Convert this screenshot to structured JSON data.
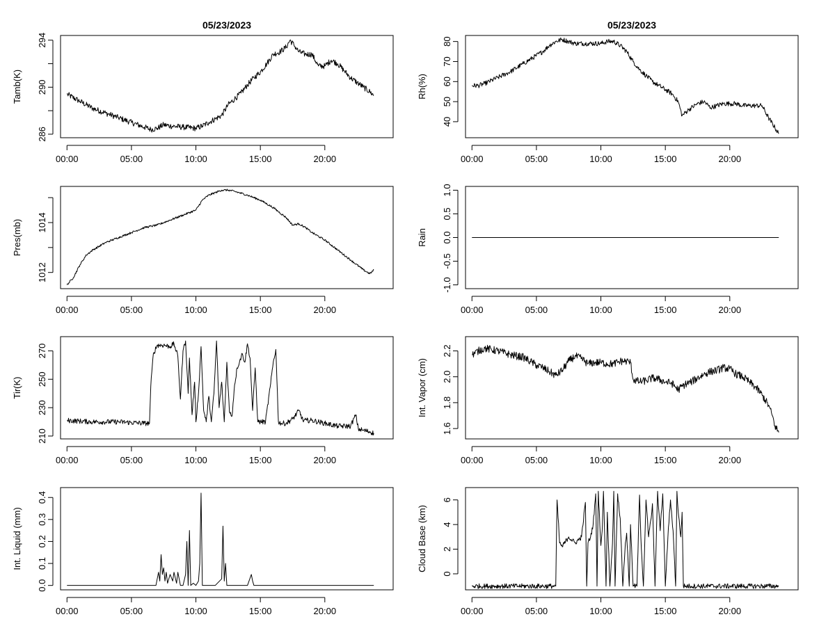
{
  "chart_data": [
    {
      "type": "line",
      "title": "05/23/2023",
      "ylabel": "Tamb(K)",
      "xlabel": "",
      "xlim": [
        -0.5,
        25.3
      ],
      "ylim": [
        285.7,
        294.4
      ],
      "xticks": [
        "00:00",
        "05:00",
        "10:00",
        "15:00",
        "20:00"
      ],
      "xtick_values": [
        0,
        5,
        10,
        15,
        20
      ],
      "yticks": [
        "286",
        "290",
        "294"
      ],
      "ytick_values": [
        286,
        290,
        294
      ],
      "ytick_minor": [
        288,
        292
      ],
      "x": [
        0,
        1,
        2,
        3,
        4,
        5,
        6,
        6.5,
        7,
        7.5,
        8,
        9,
        10,
        10.5,
        11,
        11.5,
        12,
        12.5,
        13,
        13.5,
        14,
        14.5,
        15,
        15.5,
        16,
        16.5,
        17,
        17.3,
        17.6,
        18,
        18.5,
        19,
        19.5,
        20,
        20.5,
        21,
        21.5,
        22,
        22.5,
        23,
        23.5,
        23.8
      ],
      "values": [
        289.4,
        288.8,
        288.2,
        287.8,
        287.4,
        287.0,
        286.6,
        286.4,
        286.5,
        286.8,
        286.7,
        286.6,
        286.5,
        286.7,
        287.0,
        287.3,
        287.6,
        288.5,
        289.0,
        289.5,
        290.2,
        290.8,
        291.3,
        292.0,
        292.8,
        293.0,
        293.4,
        294.0,
        293.6,
        293.0,
        292.8,
        292.8,
        291.8,
        291.8,
        292.3,
        292.0,
        291.4,
        290.8,
        290.4,
        290.0,
        289.6,
        289.3
      ],
      "noise": 0.25
    },
    {
      "type": "line",
      "title": "05/23/2023",
      "ylabel": "Rh(%)",
      "xlabel": "",
      "xlim": [
        -0.5,
        25.3
      ],
      "ylim": [
        32,
        83
      ],
      "xticks": [
        "00:00",
        "05:00",
        "10:00",
        "15:00",
        "20:00"
      ],
      "xtick_values": [
        0,
        5,
        10,
        15,
        20
      ],
      "yticks": [
        "40",
        "50",
        "60",
        "70",
        "80"
      ],
      "ytick_values": [
        40,
        50,
        60,
        70,
        80
      ],
      "ytick_minor": [],
      "x": [
        0,
        0.5,
        1,
        2,
        3,
        4,
        5,
        5.5,
        6,
        6.5,
        7,
        7.5,
        8,
        9,
        10,
        10.5,
        11,
        11.5,
        12,
        12.5,
        13,
        13.5,
        14,
        14.5,
        15,
        15.5,
        16,
        16.3,
        16.8,
        17.5,
        18,
        18.5,
        19,
        19.5,
        20,
        20.5,
        21,
        21.5,
        22,
        22.5,
        23,
        23.5,
        23.8
      ],
      "values": [
        58,
        58,
        59,
        62,
        65,
        69,
        73,
        75,
        78,
        80,
        81,
        80,
        79,
        79,
        79,
        80,
        80,
        78,
        75,
        70,
        66,
        63,
        60,
        58,
        56,
        54,
        50,
        43,
        46,
        49,
        50,
        47,
        48,
        49,
        49,
        49,
        48,
        48,
        48,
        48,
        42,
        37,
        34
      ],
      "noise": 1.2
    },
    {
      "type": "line",
      "title": "",
      "ylabel": "Pres(mb)",
      "xlabel": "",
      "xlim": [
        -0.5,
        25.3
      ],
      "ylim": [
        1011.35,
        1015.45
      ],
      "xticks": [
        "00:00",
        "05:00",
        "10:00",
        "15:00",
        "20:00"
      ],
      "xtick_values": [
        0,
        5,
        10,
        15,
        20
      ],
      "yticks": [
        "1012",
        "1014"
      ],
      "ytick_values": [
        1012,
        1014
      ],
      "ytick_minor": [
        1013,
        1015
      ],
      "x": [
        0,
        0.5,
        1,
        1.5,
        2,
        3,
        4,
        5,
        6,
        7,
        8,
        9,
        10,
        10.5,
        11,
        11.5,
        12,
        12.5,
        13,
        14,
        15,
        16,
        17,
        17.5,
        18,
        18.5,
        19,
        20,
        21,
        22,
        23,
        23.5,
        23.8
      ],
      "values": [
        1011.5,
        1011.8,
        1012.3,
        1012.7,
        1012.9,
        1013.2,
        1013.4,
        1013.6,
        1013.8,
        1013.9,
        1014.1,
        1014.3,
        1014.5,
        1014.9,
        1015.1,
        1015.2,
        1015.3,
        1015.3,
        1015.25,
        1015.1,
        1014.9,
        1014.6,
        1014.2,
        1013.9,
        1013.95,
        1013.8,
        1013.6,
        1013.3,
        1012.9,
        1012.5,
        1012.1,
        1011.95,
        1012.1
      ],
      "noise": 0.04
    },
    {
      "type": "line",
      "title": "",
      "ylabel": "Rain",
      "xlabel": "",
      "xlim": [
        -0.5,
        25.3
      ],
      "ylim": [
        -1.08,
        1.08
      ],
      "xticks": [
        "00:00",
        "05:00",
        "10:00",
        "15:00",
        "20:00"
      ],
      "xtick_values": [
        0,
        5,
        10,
        15,
        20
      ],
      "yticks": [
        "-1.0",
        "-0.5",
        "0.0",
        "0.5",
        "1.0"
      ],
      "ytick_values": [
        -1.0,
        -0.5,
        0.0,
        0.5,
        1.0
      ],
      "ytick_minor": [],
      "x": [
        0,
        23.8
      ],
      "values": [
        0,
        0
      ],
      "noise": 0
    },
    {
      "type": "line",
      "title": "",
      "ylabel": "Tir(K)",
      "xlabel": "",
      "xlim": [
        -0.5,
        25.3
      ],
      "ylim": [
        208,
        280
      ],
      "xticks": [
        "00:00",
        "05:00",
        "10:00",
        "15:00",
        "20:00"
      ],
      "xtick_values": [
        0,
        5,
        10,
        15,
        20
      ],
      "yticks": [
        "210",
        "230",
        "250",
        "270"
      ],
      "ytick_values": [
        210,
        230,
        250,
        270
      ],
      "ytick_minor": [],
      "x": [
        0,
        2,
        4,
        6,
        6.4,
        6.5,
        6.7,
        7,
        7.5,
        8,
        8.3,
        8.6,
        8.8,
        9,
        9.2,
        9.4,
        9.5,
        9.7,
        9.9,
        10,
        10.2,
        10.4,
        10.6,
        10.8,
        11,
        11.2,
        11.4,
        11.6,
        11.8,
        12,
        12.2,
        12.4,
        12.6,
        12.8,
        13,
        13.2,
        13.4,
        13.6,
        13.8,
        14,
        14.2,
        14.4,
        14.6,
        14.8,
        15,
        15.4,
        15.8,
        16,
        16.2,
        16.4,
        16.6,
        17,
        17.5,
        18,
        18.3,
        18.6,
        19,
        20,
        21,
        22,
        22.4,
        22.6,
        23,
        23.5,
        23.8
      ],
      "values": [
        221,
        220,
        220,
        219,
        219,
        245,
        268,
        274,
        274,
        273,
        275,
        266,
        236,
        270,
        277,
        240,
        265,
        225,
        248,
        220,
        240,
        273,
        228,
        220,
        238,
        220,
        240,
        277,
        230,
        248,
        220,
        262,
        227,
        224,
        246,
        258,
        263,
        268,
        262,
        275,
        265,
        228,
        258,
        220,
        220,
        220,
        247,
        262,
        271,
        220,
        219,
        219,
        222,
        228,
        221,
        221,
        221,
        219,
        217,
        217,
        225,
        215,
        214,
        213,
        212
      ],
      "noise": 1.8
    },
    {
      "type": "line",
      "title": "",
      "ylabel": "Int. Vapor (cm)",
      "xlabel": "",
      "xlim": [
        -0.5,
        25.3
      ],
      "ylim": [
        1.52,
        2.31
      ],
      "xticks": [
        "00:00",
        "05:00",
        "10:00",
        "15:00",
        "20:00"
      ],
      "xtick_values": [
        0,
        5,
        10,
        15,
        20
      ],
      "yticks": [
        "1.6",
        "1.8",
        "2.0",
        "2.2"
      ],
      "ytick_values": [
        1.6,
        1.8,
        2.0,
        2.2
      ],
      "ytick_minor": [],
      "x": [
        0,
        0.5,
        1,
        2,
        3,
        4,
        4.5,
        5,
        5.5,
        6,
        6.5,
        7,
        7.5,
        8,
        8.5,
        9,
        9.5,
        10,
        10.5,
        11,
        11.5,
        12,
        12.3,
        12.5,
        13,
        13.5,
        14,
        14.5,
        15,
        15.5,
        16,
        16.5,
        17,
        17.5,
        18,
        18.5,
        19,
        19.5,
        20,
        20.5,
        21,
        21.5,
        22,
        22.5,
        23,
        23.3,
        23.5,
        23.8
      ],
      "values": [
        2.17,
        2.2,
        2.22,
        2.2,
        2.17,
        2.15,
        2.12,
        2.09,
        2.07,
        2.04,
        2.01,
        2.05,
        2.12,
        2.16,
        2.14,
        2.1,
        2.11,
        2.11,
        2.1,
        2.1,
        2.12,
        2.12,
        2.11,
        1.98,
        1.96,
        1.97,
        1.99,
        1.98,
        1.96,
        1.95,
        1.9,
        1.94,
        1.96,
        1.99,
        2.02,
        2.04,
        2.05,
        2.07,
        2.06,
        2.02,
        2.0,
        1.96,
        1.92,
        1.86,
        1.78,
        1.7,
        1.62,
        1.57
      ],
      "noise": 0.03
    },
    {
      "type": "line",
      "title": "",
      "ylabel": "Int. Liquid (mm)",
      "xlabel": "",
      "xlim": [
        -0.5,
        25.3
      ],
      "ylim": [
        -0.02,
        0.445
      ],
      "xticks": [
        "00:00",
        "05:00",
        "10:00",
        "15:00",
        "20:00"
      ],
      "xtick_values": [
        0,
        5,
        10,
        15,
        20
      ],
      "yticks": [
        "0.0",
        "0.1",
        "0.2",
        "0.3",
        "0.4"
      ],
      "ytick_values": [
        0.0,
        0.1,
        0.2,
        0.3,
        0.4
      ],
      "ytick_minor": [],
      "x": [
        0,
        6.9,
        7.0,
        7.1,
        7.2,
        7.3,
        7.4,
        7.5,
        7.6,
        7.7,
        7.8,
        8.0,
        8.2,
        8.3,
        8.5,
        8.6,
        8.8,
        9.0,
        9.2,
        9.3,
        9.4,
        9.5,
        9.6,
        9.8,
        10.0,
        10.2,
        10.3,
        10.4,
        10.5,
        10.7,
        11.0,
        11.5,
        12.0,
        12.1,
        12.2,
        12.3,
        12.4,
        12.6,
        13.0,
        14.0,
        14.3,
        14.4,
        14.5,
        15.0,
        23.8
      ],
      "values": [
        0,
        0,
        0.03,
        0.06,
        0.02,
        0.14,
        0.05,
        0.08,
        0.02,
        0.06,
        0.01,
        0.05,
        0.02,
        0.06,
        0.01,
        0.06,
        0,
        0,
        0.05,
        0.2,
        0,
        0.25,
        0,
        0.01,
        0,
        0.02,
        0.1,
        0.42,
        0,
        0,
        0,
        0,
        0.03,
        0.27,
        0.02,
        0.1,
        0,
        0,
        0,
        0,
        0.05,
        0.02,
        0,
        0,
        0
      ],
      "noise": 0
    },
    {
      "type": "line",
      "title": "",
      "ylabel": "Cloud Base (km)",
      "xlabel": "",
      "xlim": [
        -0.5,
        25.3
      ],
      "ylim": [
        -1.3,
        7.0
      ],
      "xticks": [
        "00:00",
        "05:00",
        "10:00",
        "15:00",
        "20:00"
      ],
      "xtick_values": [
        0,
        5,
        10,
        15,
        20
      ],
      "yticks": [
        "0",
        "2",
        "4",
        "6"
      ],
      "ytick_values": [
        0,
        2,
        4,
        6
      ],
      "ytick_minor": [],
      "x": [
        0,
        6.5,
        6.6,
        6.8,
        7,
        7.5,
        8,
        8.5,
        8.8,
        8.9,
        9,
        9.2,
        9.4,
        9.6,
        9.7,
        9.8,
        10,
        10.1,
        10.2,
        10.4,
        10.5,
        10.7,
        10.9,
        11,
        11.1,
        11.3,
        11.5,
        11.7,
        11.9,
        12,
        12.2,
        12.3,
        12.5,
        12.8,
        13,
        13.1,
        13.3,
        13.5,
        13.7,
        13.9,
        14,
        14.2,
        14.4,
        14.6,
        14.8,
        15,
        15.2,
        15.4,
        15.6,
        15.8,
        15.9,
        16,
        16.2,
        16.3,
        16.4,
        17,
        23.8
      ],
      "values": [
        -1,
        -1,
        6,
        2.5,
        2.2,
        3,
        2.5,
        3,
        5.8,
        -1,
        2.5,
        3,
        4,
        6.5,
        -1,
        6.7,
        2.3,
        3.5,
        6.7,
        -1,
        5,
        -1,
        2.5,
        6.7,
        -1,
        6.5,
        4.5,
        -1,
        2.5,
        3.3,
        -1,
        4,
        -1,
        -1,
        6.4,
        3,
        -1,
        6,
        3,
        4.5,
        5.7,
        -1,
        6.7,
        3.5,
        6.5,
        -1,
        3,
        6,
        3.5,
        -1,
        6.7,
        5,
        3,
        5,
        -1,
        -1,
        -1
      ],
      "noise": 0.2
    }
  ]
}
